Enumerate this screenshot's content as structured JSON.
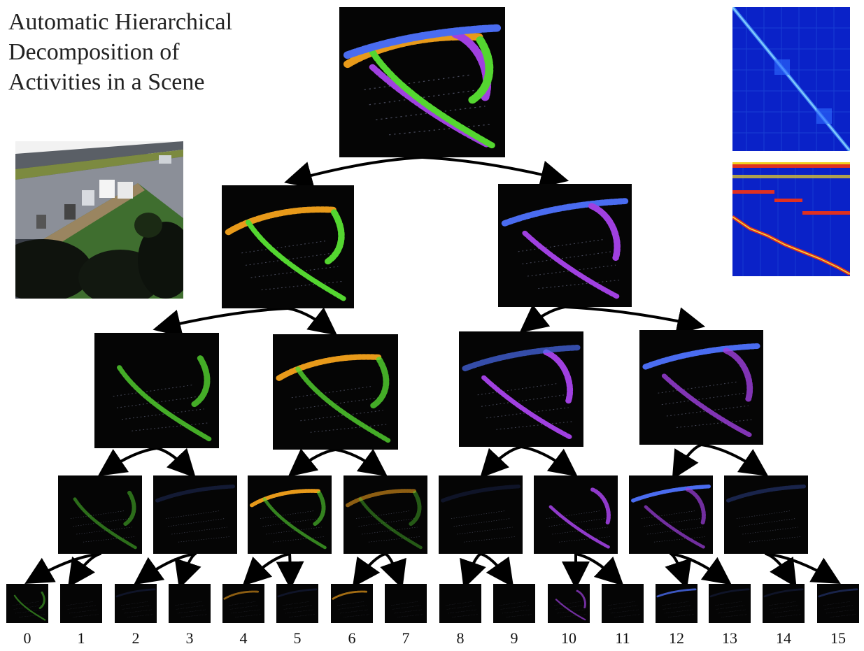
{
  "title": "Automatic Hierarchical\nDecomposition of\nActivities in a Scene",
  "leaf_labels": [
    "0",
    "1",
    "2",
    "3",
    "4",
    "5",
    "6",
    "7",
    "8",
    "9",
    "10",
    "11",
    "12",
    "13",
    "14",
    "15"
  ],
  "colors": {
    "orange": "#e89a1a",
    "green": "#54d630",
    "blue": "#4a6cf0",
    "purple": "#a040e0",
    "matrix_bg": "#0a22c8",
    "matrix_hot": "#e03020"
  }
}
